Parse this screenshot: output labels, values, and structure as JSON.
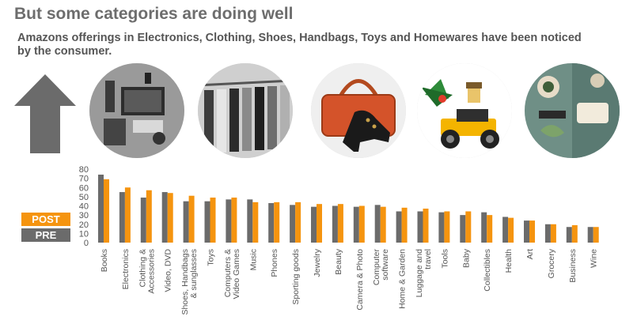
{
  "title": "But some categories are doing well",
  "subtitle": "Amazons offerings in Electronics, Clothing, Shoes, Handbags, Toys and Homewares have been noticed by the consumer.",
  "legend": {
    "post": "POST",
    "pre": "PRE"
  },
  "colors": {
    "pre": "#6b6b6b",
    "post": "#f5940f",
    "arrow": "#6b6b6b"
  },
  "photos": [
    "electronics-photo",
    "clothing-rack-photo",
    "handbag-and-shoe-photo",
    "toy-figure-photo",
    "homewares-photo"
  ],
  "chart_data": {
    "type": "bar",
    "categories": [
      [
        "Books"
      ],
      [
        "Electronics"
      ],
      [
        "Clothing &",
        "Accessories"
      ],
      [
        "Video, DVD"
      ],
      [
        "Shoes, Handbags",
        "& sunglasses"
      ],
      [
        "Toys"
      ],
      [
        "Computers &",
        "Video Games"
      ],
      [
        "Music"
      ],
      [
        "Phones"
      ],
      [
        "Sporting goods"
      ],
      [
        "Jewelry"
      ],
      [
        "Beauty"
      ],
      [
        "Camera & Photo"
      ],
      [
        "Computer",
        "software"
      ],
      [
        "Home & Garden"
      ],
      [
        "Luggage and",
        "travel"
      ],
      [
        "Tools"
      ],
      [
        "Baby"
      ],
      [
        "Collectibles"
      ],
      [
        "Health"
      ],
      [
        "Art"
      ],
      [
        "Grocery"
      ],
      [
        "Business"
      ],
      [
        "Wine"
      ]
    ],
    "series": [
      {
        "name": "PRE",
        "values": [
          74,
          55,
          49,
          55,
          45,
          45,
          47,
          47,
          43,
          41,
          39,
          40,
          39,
          41,
          34,
          34,
          33,
          30,
          33,
          28,
          24,
          20,
          17,
          17
        ]
      },
      {
        "name": "POST",
        "values": [
          69,
          60,
          57,
          54,
          51,
          49,
          49,
          44,
          44,
          44,
          42,
          42,
          40,
          39,
          38,
          37,
          34,
          34,
          30,
          27,
          24,
          20,
          19,
          17
        ]
      }
    ],
    "yticks": [
      0,
      10,
      20,
      30,
      40,
      50,
      60,
      70,
      80
    ],
    "ylim": [
      0,
      80
    ],
    "legend_position": "left"
  }
}
